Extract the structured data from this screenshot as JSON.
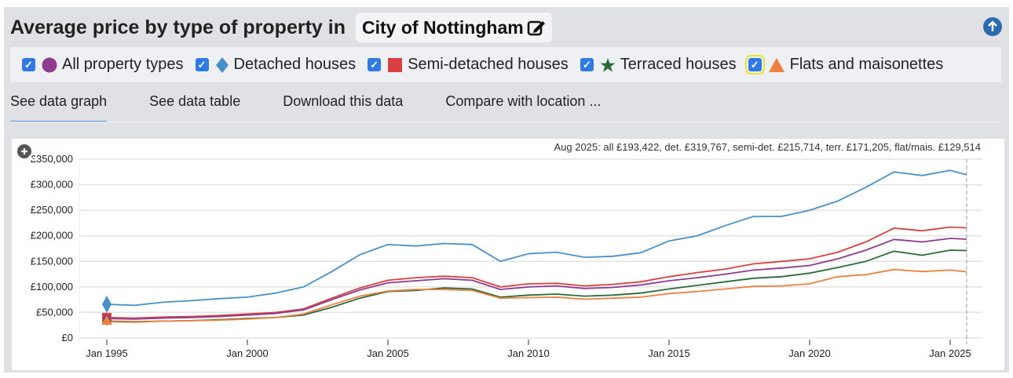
{
  "header": {
    "title": "Average price by type of property in",
    "location": "City of Nottingham",
    "edit_icon": "pencil-square-icon",
    "up_icon": "arrow-up-circle-icon"
  },
  "legend": [
    {
      "label": "All property types",
      "marker": "circle",
      "color": "#8e3a8f",
      "checked": true
    },
    {
      "label": "Detached houses",
      "marker": "diamond",
      "color": "#4a90c8",
      "checked": true
    },
    {
      "label": "Semi-detached houses",
      "marker": "square",
      "color": "#d94141",
      "checked": true
    },
    {
      "label": "Terraced houses",
      "marker": "star",
      "color": "#2a6b3a",
      "checked": true
    },
    {
      "label": "Flats and maisonettes",
      "marker": "triangle",
      "color": "#f08040",
      "checked": true
    }
  ],
  "tabs": [
    "See data graph",
    "See data table",
    "Download this data",
    "Compare with location ..."
  ],
  "chart_data": {
    "type": "line",
    "summary": "Aug 2025: all £193,422, det. £319,767, semi-det. £215,714, terr. £171,205, flat/mais. £129,514",
    "x": [
      "1995",
      "1996",
      "1997",
      "1998",
      "1999",
      "2000",
      "2001",
      "2002",
      "2003",
      "2004",
      "2005",
      "2006",
      "2007",
      "2008",
      "2009",
      "2010",
      "2011",
      "2012",
      "2013",
      "2014",
      "2015",
      "2016",
      "2017",
      "2018",
      "2019",
      "2020",
      "2021",
      "2022",
      "2023",
      "2024",
      "2025",
      "2025-08"
    ],
    "ylim": [
      0,
      350000
    ],
    "yticks": [
      "£0",
      "£50,000",
      "£100,000",
      "£150,000",
      "£200,000",
      "£250,000",
      "£300,000",
      "£350,000"
    ],
    "xticks": [
      "Jan 1995",
      "Jan 2000",
      "Jan 2005",
      "Jan 2010",
      "Jan 2015",
      "Jan 2020",
      "Jan 2025"
    ],
    "grid": true,
    "series": [
      {
        "name": "Detached houses",
        "color": "#4a90c8",
        "values": [
          66000,
          64000,
          70000,
          73000,
          77000,
          80000,
          88000,
          100000,
          130000,
          163000,
          183000,
          180000,
          185000,
          183000,
          150000,
          165000,
          168000,
          158000,
          160000,
          167000,
          190000,
          200000,
          220000,
          238000,
          238000,
          250000,
          268000,
          295000,
          325000,
          318000,
          328000,
          319767
        ]
      },
      {
        "name": "Semi-detached houses",
        "color": "#d94141",
        "values": [
          40000,
          39000,
          41000,
          42000,
          44000,
          47000,
          50000,
          57000,
          78000,
          98000,
          113000,
          118000,
          121000,
          118000,
          100000,
          106000,
          107000,
          102000,
          105000,
          110000,
          120000,
          128000,
          135000,
          145000,
          150000,
          155000,
          168000,
          188000,
          215000,
          210000,
          217000,
          215714
        ]
      },
      {
        "name": "All property types",
        "color": "#8e3a8f",
        "values": [
          38000,
          37000,
          39000,
          40000,
          42000,
          45000,
          48000,
          55000,
          75000,
          94000,
          108000,
          112000,
          116000,
          113000,
          95000,
          100000,
          102000,
          97000,
          99000,
          104000,
          112000,
          118000,
          125000,
          133000,
          137000,
          142000,
          155000,
          172000,
          193000,
          188000,
          195000,
          193422
        ]
      },
      {
        "name": "Terraced houses",
        "color": "#2a6b3a",
        "values": [
          33000,
          32000,
          33000,
          34000,
          36000,
          38000,
          40000,
          45000,
          60000,
          78000,
          91000,
          93000,
          98000,
          96000,
          80000,
          84000,
          86000,
          82000,
          84000,
          88000,
          96000,
          103000,
          110000,
          117000,
          120000,
          127000,
          138000,
          150000,
          170000,
          162000,
          172000,
          171205
        ]
      },
      {
        "name": "Flats and maisonettes",
        "color": "#f08040",
        "values": [
          32000,
          31000,
          33000,
          34000,
          35000,
          37000,
          40000,
          47000,
          65000,
          82000,
          92000,
          95000,
          95000,
          93000,
          78000,
          79000,
          80000,
          76000,
          78000,
          80000,
          87000,
          91000,
          96000,
          101000,
          102000,
          106000,
          120000,
          124000,
          134000,
          130000,
          133000,
          129514
        ]
      }
    ]
  }
}
